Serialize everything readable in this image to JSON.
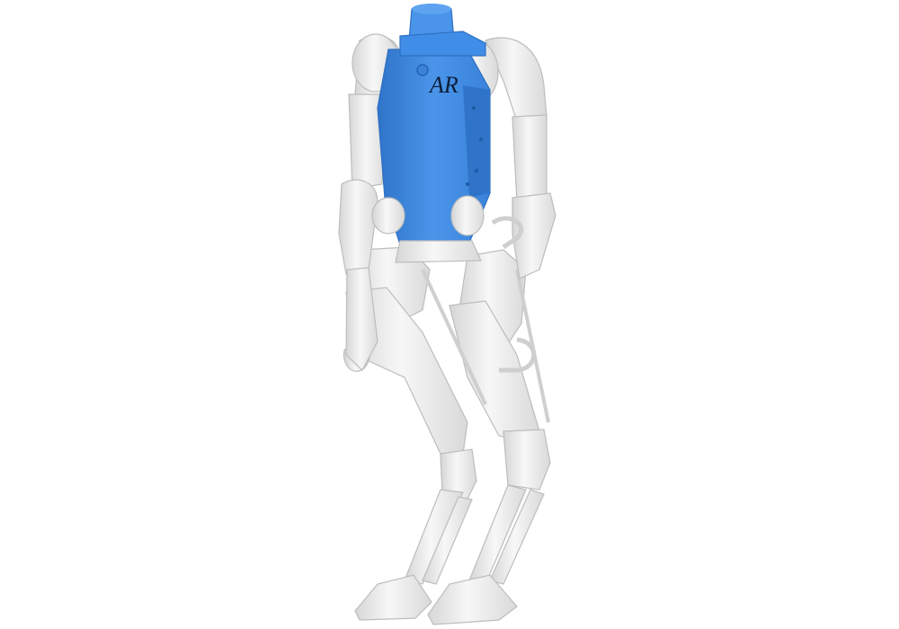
{
  "scene": {
    "subject": "humanoid-robot-model",
    "logo_text": "AR",
    "colors": {
      "background": "#ffffff",
      "highlight": "#3f8de6",
      "highlight_dark": "#2f74c8",
      "highlight_light": "#5ea3f0",
      "body": "#eaeaea",
      "body_light": "#f6f6f6",
      "body_shadow": "#cfcfcf",
      "body_edge": "#b9b9b9",
      "logo": "#0b1f3a"
    }
  }
}
